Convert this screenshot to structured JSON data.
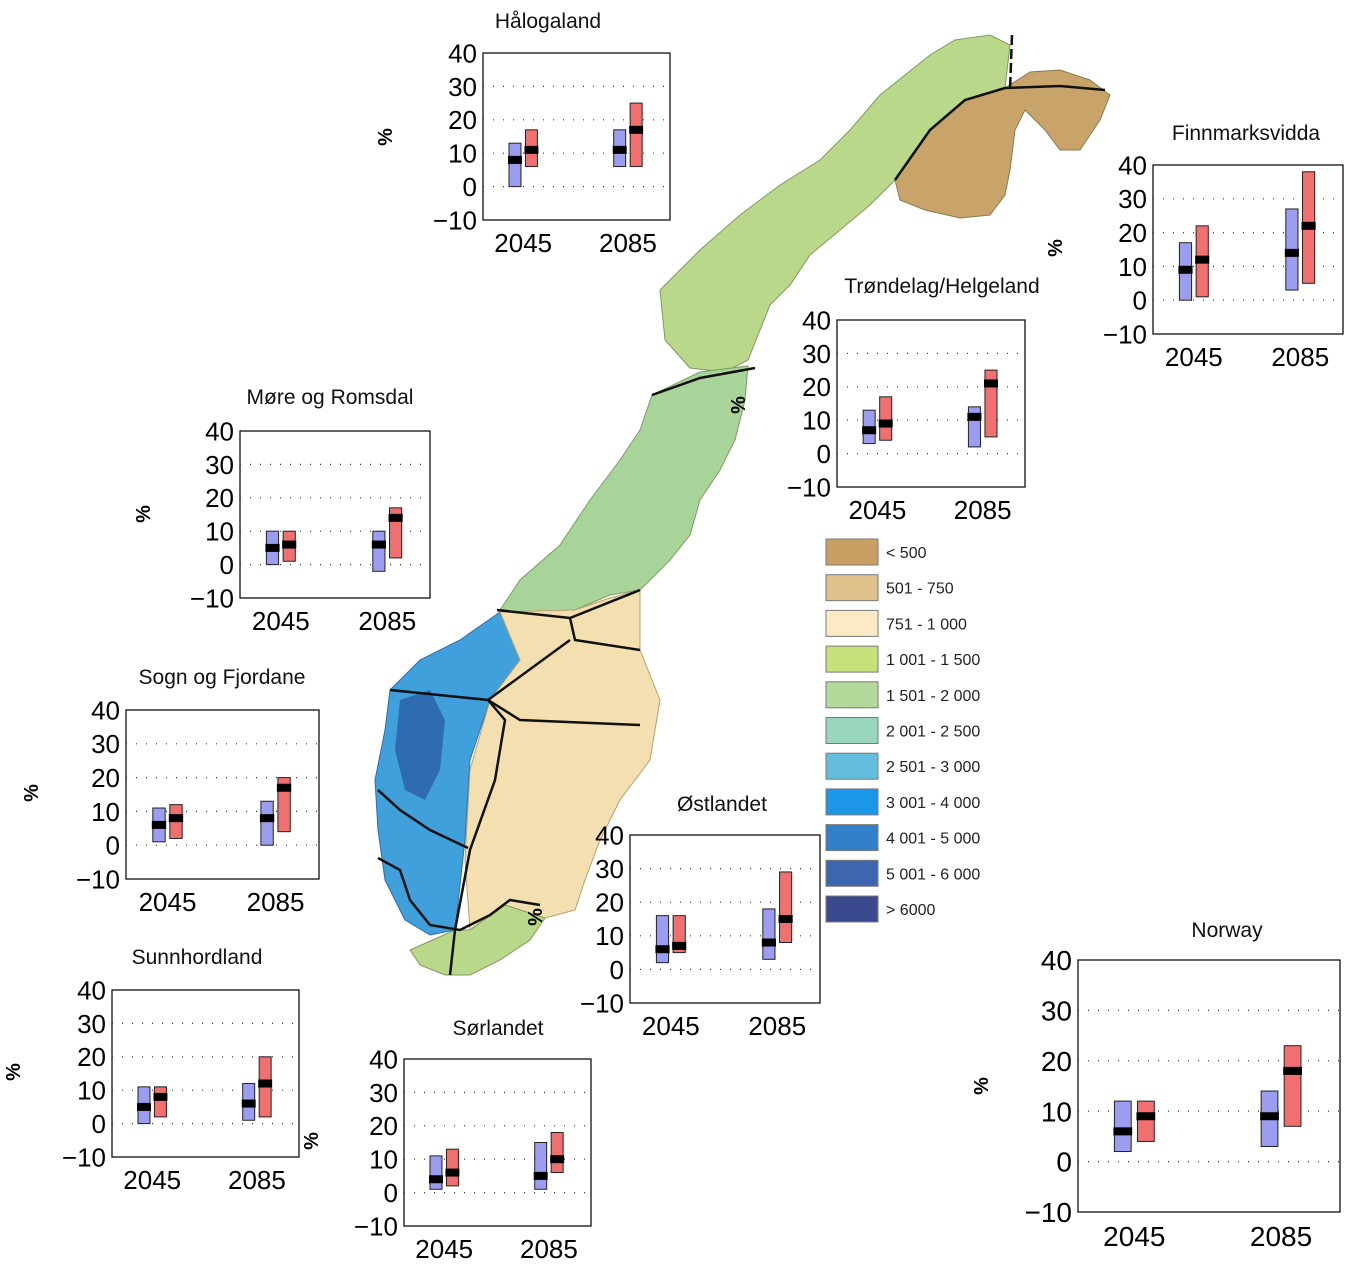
{
  "map": {
    "colors": {
      "finnmark": "#c9a46a",
      "lowland": "#f3dfb0",
      "green": "#b9d88a",
      "teal": "#8fcfb8",
      "blue": "#3fa0dc",
      "darkblue": "#2f6bb0",
      "boundary": "#111111"
    }
  },
  "legend": {
    "items": [
      {
        "label": "< 500",
        "color": "#c8a063"
      },
      {
        "label": "501 - 750",
        "color": "#dfc08a"
      },
      {
        "label": "751 - 1 000",
        "color": "#fbeac4"
      },
      {
        "label": "1 001 - 1 500",
        "color": "#c6e07a"
      },
      {
        "label": "1 501 - 2 000",
        "color": "#b2d99a"
      },
      {
        "label": "2 001 - 2 500",
        "color": "#99d6bd"
      },
      {
        "label": "2 501 - 3 000",
        "color": "#63bede"
      },
      {
        "label": "3 001 - 4 000",
        "color": "#1c96e6"
      },
      {
        "label": "4 001 - 5 000",
        "color": "#3281c8"
      },
      {
        "label": "5 001 - 6 000",
        "color": "#3c66ad"
      },
      {
        "label": "> 6000",
        "color": "#3b4a8e"
      }
    ]
  },
  "chart_colors": {
    "blue_box": "#9a9df0",
    "red_box": "#f07070",
    "median": "#000000",
    "grid": "#333333"
  },
  "chart_data": [
    {
      "type": "box",
      "title": "Hålogaland",
      "ylabel": "%",
      "categories": [
        "2045",
        "2085"
      ],
      "ylim": [
        -10,
        40
      ],
      "yticks": [
        "40",
        "30",
        "20",
        "10",
        "0",
        "−10"
      ],
      "series": [
        {
          "values": [
            {
              "low": 0,
              "mid": 8,
              "high": 13
            },
            {
              "low": 6,
              "mid": 11,
              "high": 17
            }
          ]
        },
        {
          "values": [
            {
              "low": 6,
              "mid": 11,
              "high": 17
            },
            {
              "low": 6,
              "mid": 17,
              "high": 25
            }
          ]
        }
      ]
    },
    {
      "type": "box",
      "title": "Finnmarksvidda",
      "ylabel": "%",
      "categories": [
        "2045",
        "2085"
      ],
      "ylim": [
        -10,
        40
      ],
      "yticks": [
        "40",
        "30",
        "20",
        "10",
        "0",
        "−10"
      ],
      "series": [
        {
          "values": [
            {
              "low": 0,
              "mid": 9,
              "high": 17
            },
            {
              "low": 3,
              "mid": 14,
              "high": 27
            }
          ]
        },
        {
          "values": [
            {
              "low": 1,
              "mid": 12,
              "high": 22
            },
            {
              "low": 5,
              "mid": 22,
              "high": 38
            }
          ]
        }
      ]
    },
    {
      "type": "box",
      "title": "Trøndelag/Helgeland",
      "ylabel": "%",
      "categories": [
        "2045",
        "2085"
      ],
      "ylim": [
        -10,
        40
      ],
      "yticks": [
        "40",
        "30",
        "20",
        "10",
        "0",
        "−10"
      ],
      "series": [
        {
          "values": [
            {
              "low": 3,
              "mid": 7,
              "high": 13
            },
            {
              "low": 2,
              "mid": 11,
              "high": 14
            }
          ]
        },
        {
          "values": [
            {
              "low": 4,
              "mid": 9,
              "high": 17
            },
            {
              "low": 5,
              "mid": 21,
              "high": 25
            }
          ]
        }
      ]
    },
    {
      "type": "box",
      "title": "Møre og Romsdal",
      "ylabel": "%",
      "categories": [
        "2045",
        "2085"
      ],
      "ylim": [
        -10,
        40
      ],
      "yticks": [
        "40",
        "30",
        "20",
        "10",
        "0",
        "−10"
      ],
      "series": [
        {
          "values": [
            {
              "low": 0,
              "mid": 5,
              "high": 10
            },
            {
              "low": -2,
              "mid": 6,
              "high": 10
            }
          ]
        },
        {
          "values": [
            {
              "low": 1,
              "mid": 6,
              "high": 10
            },
            {
              "low": 2,
              "mid": 14,
              "high": 17
            }
          ]
        }
      ]
    },
    {
      "type": "box",
      "title": "Sogn og Fjordane",
      "ylabel": "%",
      "categories": [
        "2045",
        "2085"
      ],
      "ylim": [
        -10,
        40
      ],
      "yticks": [
        "40",
        "30",
        "20",
        "10",
        "0",
        "−10"
      ],
      "series": [
        {
          "values": [
            {
              "low": 1,
              "mid": 6,
              "high": 11
            },
            {
              "low": 0,
              "mid": 8,
              "high": 13
            }
          ]
        },
        {
          "values": [
            {
              "low": 2,
              "mid": 8,
              "high": 12
            },
            {
              "low": 4,
              "mid": 17,
              "high": 20
            }
          ]
        }
      ]
    },
    {
      "type": "box",
      "title": "Sunnhordland",
      "ylabel": "%",
      "categories": [
        "2045",
        "2085"
      ],
      "ylim": [
        -10,
        40
      ],
      "yticks": [
        "40",
        "30",
        "20",
        "10",
        "0",
        "−10"
      ],
      "series": [
        {
          "values": [
            {
              "low": 0,
              "mid": 5,
              "high": 11
            },
            {
              "low": 1,
              "mid": 6,
              "high": 12
            }
          ]
        },
        {
          "values": [
            {
              "low": 2,
              "mid": 8,
              "high": 11
            },
            {
              "low": 2,
              "mid": 12,
              "high": 20
            }
          ]
        }
      ]
    },
    {
      "type": "box",
      "title": "Sørlandet",
      "ylabel": "%",
      "categories": [
        "2045",
        "2085"
      ],
      "ylim": [
        -10,
        40
      ],
      "yticks": [
        "40",
        "30",
        "20",
        "10",
        "0",
        "−10"
      ],
      "series": [
        {
          "values": [
            {
              "low": 1,
              "mid": 4,
              "high": 11
            },
            {
              "low": 1,
              "mid": 5,
              "high": 15
            }
          ]
        },
        {
          "values": [
            {
              "low": 2,
              "mid": 6,
              "high": 13
            },
            {
              "low": 6,
              "mid": 10,
              "high": 18
            }
          ]
        }
      ]
    },
    {
      "type": "box",
      "title": "Østlandet",
      "ylabel": "%",
      "categories": [
        "2045",
        "2085"
      ],
      "ylim": [
        -10,
        40
      ],
      "yticks": [
        "40",
        "30",
        "20",
        "10",
        "0",
        "−10"
      ],
      "series": [
        {
          "values": [
            {
              "low": 2,
              "mid": 6,
              "high": 16
            },
            {
              "low": 3,
              "mid": 8,
              "high": 18
            }
          ]
        },
        {
          "values": [
            {
              "low": 5,
              "mid": 7,
              "high": 16
            },
            {
              "low": 8,
              "mid": 15,
              "high": 29
            }
          ]
        }
      ]
    },
    {
      "type": "box",
      "title": "Norway",
      "ylabel": "%",
      "categories": [
        "2045",
        "2085"
      ],
      "ylim": [
        -10,
        40
      ],
      "yticks": [
        "40",
        "30",
        "20",
        "10",
        "0",
        "−10"
      ],
      "series": [
        {
          "values": [
            {
              "low": 2,
              "mid": 6,
              "high": 12
            },
            {
              "low": 3,
              "mid": 9,
              "high": 14
            }
          ]
        },
        {
          "values": [
            {
              "low": 4,
              "mid": 9,
              "high": 12
            },
            {
              "low": 7,
              "mid": 18,
              "high": 23
            }
          ]
        }
      ]
    }
  ]
}
